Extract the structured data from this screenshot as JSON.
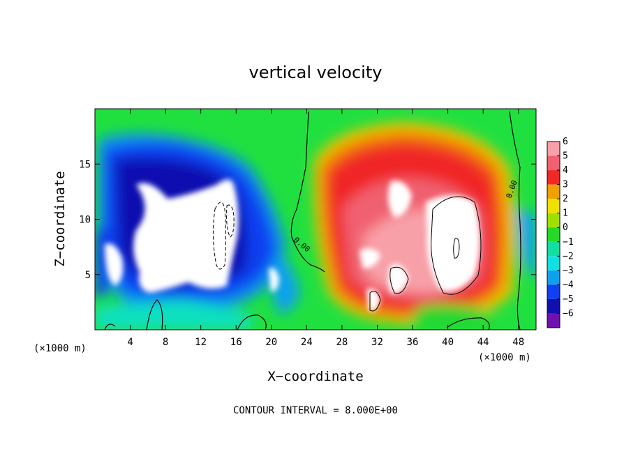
{
  "chart_data": {
    "type": "heatmap",
    "title": "vertical velocity",
    "xlabel": "X−coordinate",
    "ylabel": "Z−coordinate",
    "x_unit_left": "(×1000 m)",
    "x_unit_right": "(×1000 m)",
    "xlim": [
      0,
      50
    ],
    "ylim": [
      0,
      20
    ],
    "x_ticks": [
      4,
      8,
      12,
      16,
      20,
      24,
      28,
      32,
      36,
      40,
      44,
      48
    ],
    "y_ticks": [
      5,
      10,
      15
    ],
    "colorbar": {
      "levels": [
        6,
        5,
        4,
        3,
        2,
        1,
        0,
        -1,
        -2,
        -3,
        -4,
        -5,
        -6
      ],
      "labels": [
        "6",
        "5",
        "4",
        "3",
        "2",
        "1",
        "0",
        "−1",
        "−2",
        "−3",
        "−4",
        "−5",
        "−6"
      ],
      "colors": [
        "#f8a0a8",
        "#f06070",
        "#f02828",
        "#f0a000",
        "#f0e000",
        "#a0e000",
        "#28d828",
        "#10e0a0",
        "#10e0e0",
        "#10a0f0",
        "#1040f0",
        "#1010b0",
        "#7010b0"
      ]
    },
    "contour_labels": [
      "0.00",
      "0.00"
    ],
    "annotation": "CONTOUR INTERVAL = 8.000E+00"
  }
}
